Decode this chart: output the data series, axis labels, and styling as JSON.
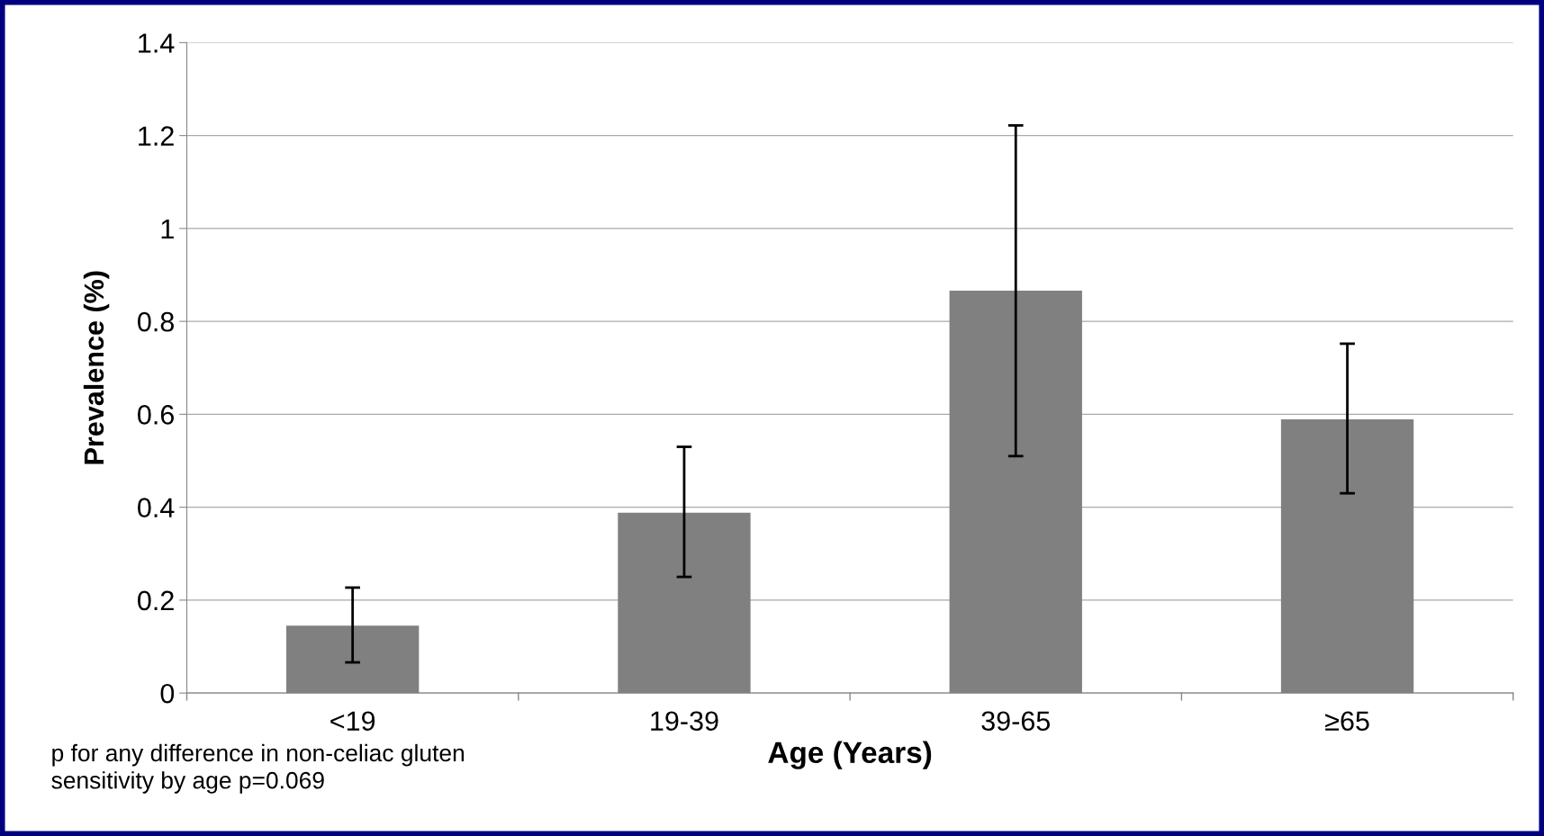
{
  "chart_data": {
    "type": "bar",
    "xlabel": "Age (Years)",
    "ylabel": "Prevalence (%)",
    "categories": [
      "<19",
      "19-39",
      "39-65",
      "≥65"
    ],
    "values": [
      0.145,
      0.388,
      0.866,
      0.589
    ],
    "errors": [
      [
        0.066,
        0.227
      ],
      [
        0.25,
        0.53
      ],
      [
        0.51,
        1.222
      ],
      [
        0.43,
        0.752
      ]
    ],
    "color": "#808080",
    "ylim": [
      0,
      1.4
    ],
    "yticks": [
      0,
      0.2,
      0.4,
      0.6,
      0.8,
      1,
      1.2,
      1.4
    ],
    "grid": "y",
    "annotations": [
      "p for any difference in non-celiac gluten\nsensitivity by age p=0.069"
    ]
  }
}
